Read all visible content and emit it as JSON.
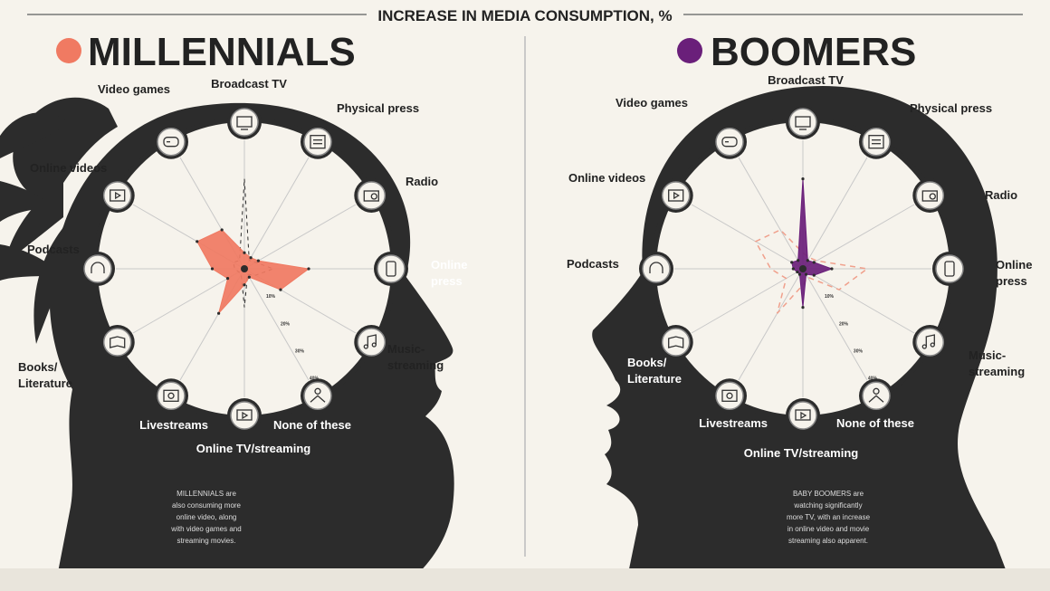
{
  "header": {
    "title": "INCREASE IN MEDIA CONSUMPTION, %"
  },
  "colors": {
    "background": "#f6f3ec",
    "silhouette": "#2c2c2c",
    "text": "#222222",
    "millennials": "#f07a62",
    "boomers": "#6a1f7a",
    "reference_dashed": "#f0a08c"
  },
  "icons": [
    "tv-icon",
    "newspaper-icon",
    "radio-icon",
    "tablet-icon",
    "music-icon",
    "meditation-icon",
    "tv-stream-icon",
    "livestream-icon",
    "book-icon",
    "headphones-icon",
    "video-icon",
    "gamepad-icon"
  ],
  "chart_data": [
    {
      "type": "radar",
      "title": "MILLENNIALS",
      "color": "#f07a62",
      "categories": [
        "Broadcast TV",
        "Physical press",
        "Radio",
        "Online press",
        "Music-streaming",
        "None of these",
        "Online TV/streaming",
        "Livestreams",
        "Books/ Literature",
        "Podcasts",
        "Online videos",
        "Video games"
      ],
      "values": [
        5,
        4,
        5,
        20,
        13,
        3,
        5,
        16,
        6,
        10,
        17,
        14
      ],
      "rmax": 40,
      "rings": [
        10,
        20,
        30,
        40
      ],
      "ring_labels": [
        "10%",
        "20%",
        "30%",
        "40%"
      ],
      "annotation": [
        "MILLENNIALS are",
        "also consuming more",
        "online video, along",
        "with video games and",
        "streaming movies."
      ]
    },
    {
      "type": "radar",
      "title": "BOOMERS",
      "color": "#6a1f7a",
      "categories": [
        "Broadcast TV",
        "Physical press",
        "Radio",
        "Online press",
        "Music-streaming",
        "None of these",
        "Online TV/streaming",
        "Livestreams",
        "Books/ Literature",
        "Podcasts",
        "Online videos",
        "Video games"
      ],
      "values": [
        28,
        3,
        4,
        9,
        4,
        2,
        12,
        2,
        2,
        3,
        4,
        3
      ],
      "rmax": 40,
      "rings": [
        10,
        20,
        30,
        40
      ],
      "ring_labels": [
        "10%",
        "20%",
        "30%",
        "40%"
      ],
      "annotation": [
        "BABY BOOMERS are",
        "watching significantly",
        "more TV, with an increase",
        "in online video and movie",
        "streaming also apparent."
      ]
    }
  ]
}
